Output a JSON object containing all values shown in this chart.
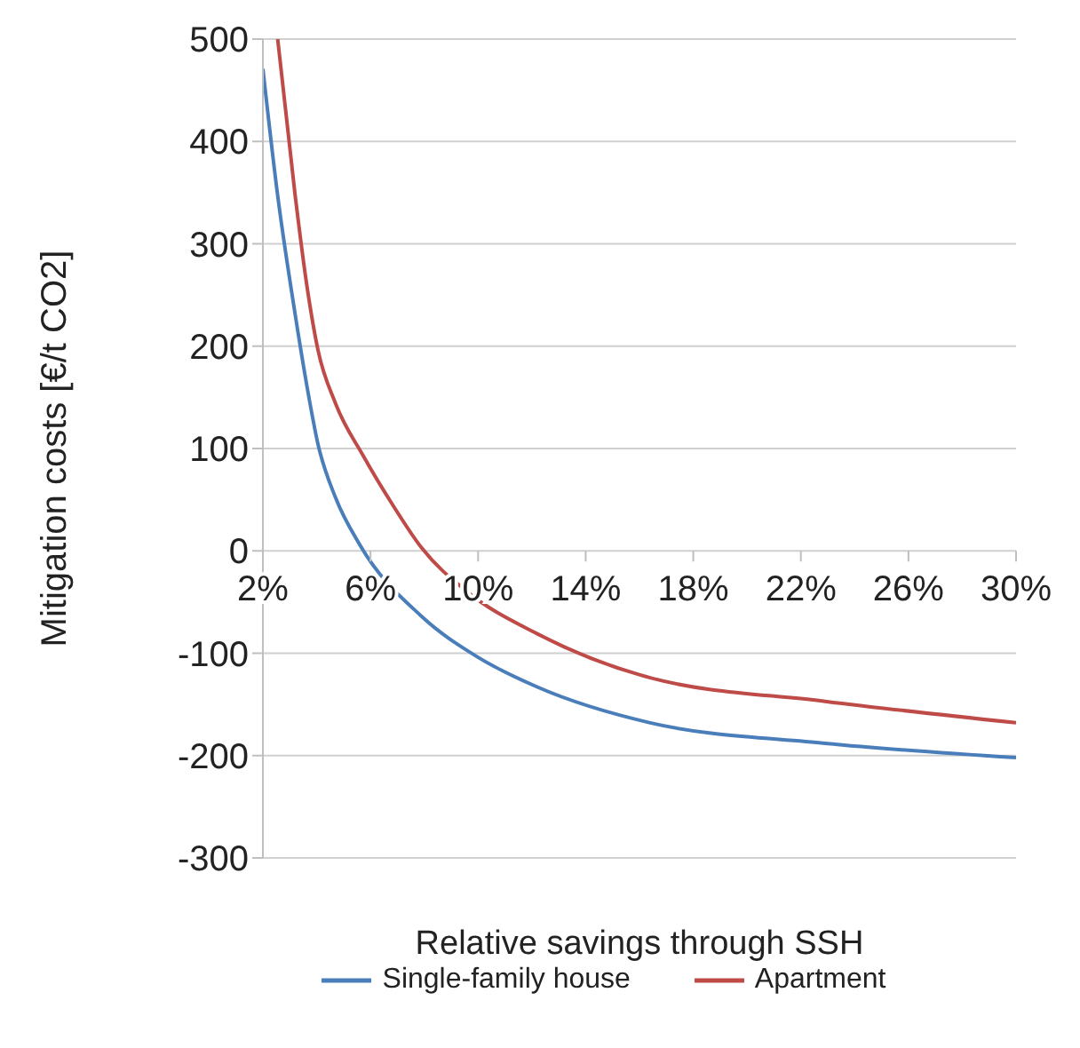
{
  "chart_data": {
    "type": "line",
    "xlabel": "Relative savings through SSH",
    "ylabel": "Mitigation costs [€/t CO2]",
    "xlim": [
      2,
      30
    ],
    "xticks": [
      {
        "value": 2,
        "label": "2%"
      },
      {
        "value": 6,
        "label": "6%"
      },
      {
        "value": 10,
        "label": "10%"
      },
      {
        "value": 14,
        "label": "14%"
      },
      {
        "value": 18,
        "label": "18%"
      },
      {
        "value": 22,
        "label": "22%"
      },
      {
        "value": 26,
        "label": "26%"
      },
      {
        "value": 30,
        "label": "30%"
      }
    ],
    "ylim": [
      -300,
      500
    ],
    "yticks": [
      -300,
      -200,
      -100,
      0,
      100,
      200,
      300,
      400,
      500
    ],
    "grid": "y",
    "legend": "bottom",
    "marker": "none",
    "line_style": "solid",
    "series": [
      {
        "name": "Single-family house",
        "color": "#4a7ebb",
        "x": [
          2,
          2.55,
          3.2,
          3.63,
          4.05,
          4.7,
          5.6,
          7.9,
          10,
          12.2,
          16.4,
          22.9,
          30
        ],
        "values": [
          471,
          347,
          231,
          162,
          104,
          52,
          6,
          -64,
          -104,
          -133,
          -168,
          -188,
          -202
        ]
      },
      {
        "name": "Apartment",
        "color": "#be4b48",
        "x": [
          2.55,
          3.2,
          3.63,
          4.05,
          4.7,
          5.75,
          6.8,
          7.9,
          9.6,
          12.2,
          16.4,
          22.9,
          30
        ],
        "values": [
          500,
          347,
          260,
          196,
          144,
          92,
          46,
          3,
          -40,
          -81,
          -124,
          -147,
          -168
        ]
      }
    ]
  }
}
